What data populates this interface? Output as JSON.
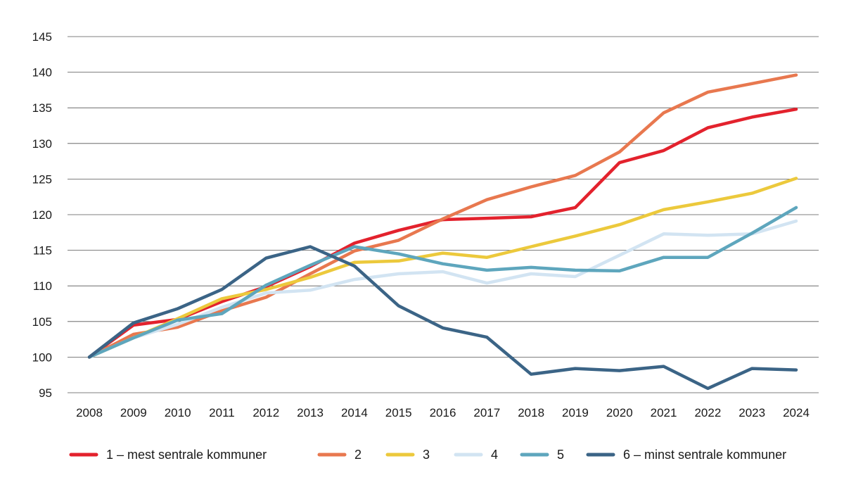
{
  "chart_data": {
    "type": "line",
    "title": "",
    "xlabel": "",
    "ylabel": "",
    "ylim": [
      95,
      145
    ],
    "yticks": [
      95,
      100,
      105,
      110,
      115,
      120,
      125,
      130,
      135,
      140,
      145
    ],
    "grid": true,
    "legend_position": "bottom",
    "x": [
      "2008",
      "2009",
      "2010",
      "2011",
      "2012",
      "2013",
      "2014",
      "2015",
      "2016",
      "2017",
      "2018",
      "2019",
      "2020",
      "2021",
      "2022",
      "2023",
      "2024"
    ],
    "series": [
      {
        "name": "1 – mest sentrale kommuner",
        "color": "#e3222d",
        "values": [
          100,
          104.5,
          105.3,
          107.8,
          109.9,
          112.7,
          116.0,
          117.8,
          119.3,
          119.5,
          119.7,
          121.0,
          127.3,
          129.0,
          132.2,
          133.7,
          134.8
        ]
      },
      {
        "name": "2",
        "color": "#e8784f",
        "values": [
          100,
          103.2,
          104.2,
          106.5,
          108.4,
          111.7,
          114.9,
          116.4,
          119.4,
          122.1,
          123.9,
          125.5,
          128.8,
          134.3,
          137.2,
          138.4,
          139.6
        ]
      },
      {
        "name": "3",
        "color": "#ecc93c",
        "values": [
          100,
          102.7,
          105.4,
          108.2,
          109.5,
          111.2,
          113.3,
          113.5,
          114.6,
          114.0,
          115.5,
          117.0,
          118.6,
          120.7,
          121.8,
          123.0,
          125.1
        ]
      },
      {
        "name": "4",
        "color": "#d2e4f2",
        "values": [
          100,
          102.7,
          104.6,
          107.0,
          109.0,
          109.4,
          110.9,
          111.7,
          112.0,
          110.4,
          111.7,
          111.3,
          114.3,
          117.3,
          117.1,
          117.3,
          119.1
        ]
      },
      {
        "name": "5",
        "color": "#5ea6bd",
        "values": [
          100,
          102.7,
          105.2,
          106.1,
          110.1,
          112.9,
          115.5,
          114.5,
          113.1,
          112.2,
          112.6,
          112.2,
          112.1,
          114.0,
          114.0,
          117.4,
          121.0
        ]
      },
      {
        "name": "6 – minst sentrale kommuner",
        "color": "#3b6486",
        "values": [
          100,
          104.8,
          106.8,
          109.5,
          113.9,
          115.5,
          112.8,
          107.2,
          104.1,
          102.8,
          97.6,
          98.4,
          98.1,
          98.7,
          95.6,
          98.4,
          98.2
        ]
      }
    ]
  }
}
